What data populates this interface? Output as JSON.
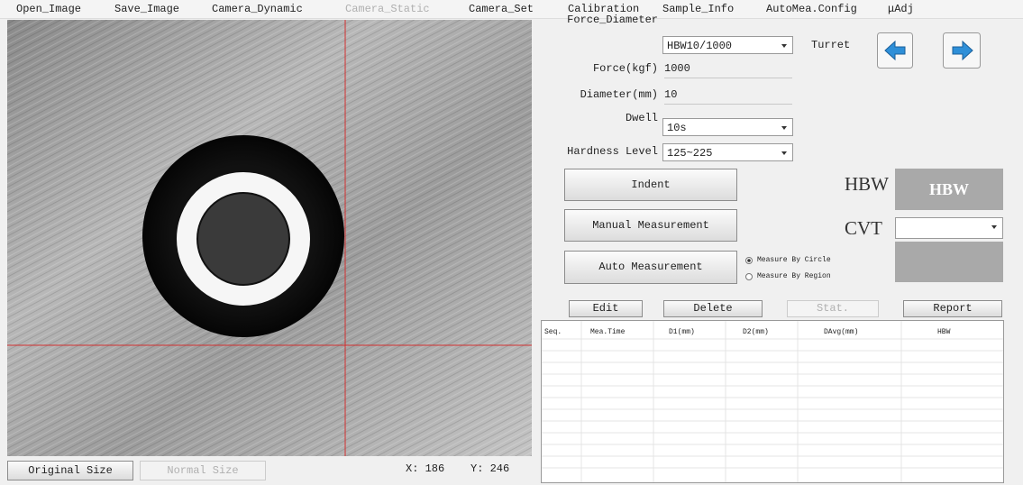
{
  "menu": [
    "Open_Image",
    "Save_Image",
    "Camera_Dynamic",
    "Camera_Static",
    "Camera_Set",
    "Calibration",
    "Sample_Info",
    "AutoMea.Config",
    "μAdj"
  ],
  "image_view": {
    "buttons": [
      "Original Size",
      "Normal Size"
    ],
    "x_coord": "X: 186",
    "y_coord": "Y: 246"
  },
  "settings": {
    "force_diameter": {
      "label": "Force_Diameter",
      "value": "HBW10/1000"
    },
    "force": {
      "label": "Force(kgf)",
      "value": "1000"
    },
    "diameter": {
      "label": "Diameter(mm)",
      "value": "10"
    },
    "dwell": {
      "label": "Dwell",
      "value": "10s"
    },
    "hardness_level": {
      "label": "Hardness Level",
      "value": "125~225"
    },
    "turret": "Turret"
  },
  "actions": [
    "Indent",
    "Manual Measurement",
    "Auto Measurement"
  ],
  "measure_modes": [
    "Measure By Circle",
    "Measure By Region"
  ],
  "results": {
    "hbw_label": "HBW",
    "hbw_value": "HBW",
    "cvt_label": "CVT"
  },
  "table": {
    "buttons": [
      "Edit",
      "Delete",
      "Stat.",
      "Report"
    ],
    "columns": [
      "Seq.",
      "Mea.Time",
      "D1(mm)",
      "D2(mm)",
      "DAvg(mm)",
      "HBW"
    ]
  }
}
